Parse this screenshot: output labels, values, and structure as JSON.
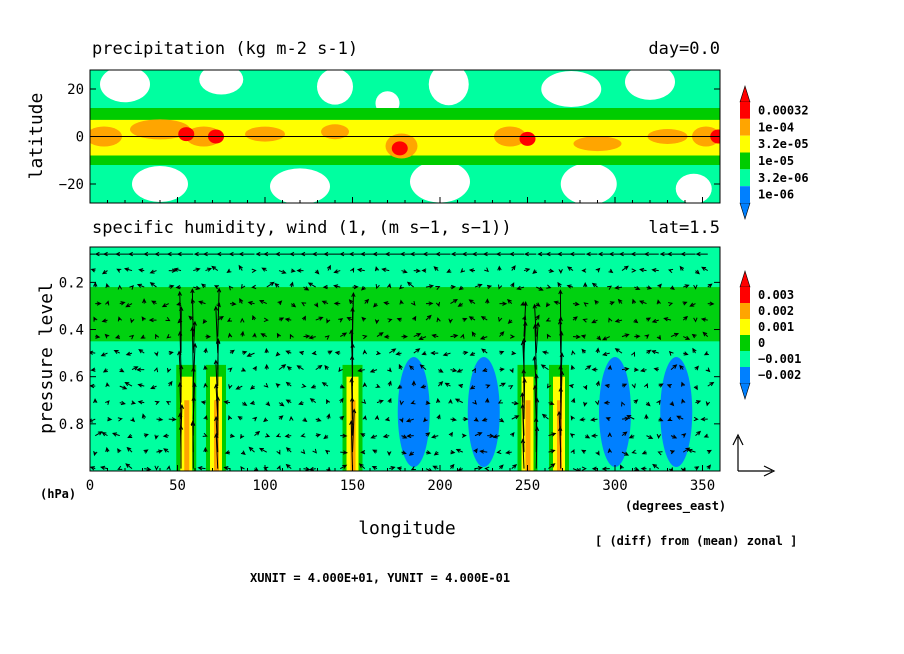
{
  "chart_data": [
    {
      "type": "heatmap",
      "title": "precipitation (kg m-2 s-1)",
      "title_right": "day=0.0",
      "ylabel": "latitude",
      "xlim": [
        0,
        360
      ],
      "ylim": [
        -28,
        28
      ],
      "yticks": [
        "20",
        "0",
        "−20"
      ],
      "ytick_values": [
        20,
        0,
        -20
      ],
      "legend": {
        "placement": "right",
        "levels": [
          "0.00032",
          "1e-04",
          "3.2e-05",
          "1e-05",
          "3.2e-06",
          "1e-06"
        ],
        "colors": [
          "#ff0000",
          "#ffa500",
          "#ffff00",
          "#00cc00",
          "#00ffa0",
          "#0080ff"
        ]
      },
      "features": {
        "equator_line_lat": 0,
        "maxima": [
          {
            "lon": 55,
            "lat": 1
          },
          {
            "lon": 72,
            "lat": 0
          },
          {
            "lon": 177,
            "lat": -5
          },
          {
            "lon": 250,
            "lat": -1
          },
          {
            "lon": 359,
            "lat": 0
          }
        ]
      }
    },
    {
      "type": "heatmap",
      "title": "specific humidity, wind (1, (m s−1, s−1))",
      "title_right": "lat=1.5",
      "xlabel": "longitude",
      "ylabel": "pressure level",
      "y_unit_label": "(hPa)",
      "x_unit_label": "(degrees_east)",
      "xlim": [
        0,
        360
      ],
      "ylim": [
        1.0,
        0.05
      ],
      "xticks": [
        "0",
        "50",
        "100",
        "150",
        "200",
        "250",
        "300",
        "350"
      ],
      "xtick_values": [
        0,
        50,
        100,
        150,
        200,
        250,
        300,
        350
      ],
      "yticks": [
        "0.2",
        "0.4",
        "0.6",
        "0.8"
      ],
      "ytick_values": [
        0.2,
        0.4,
        0.6,
        0.8
      ],
      "legend": {
        "placement": "right",
        "levels": [
          "0.003",
          "0.002",
          "0.001",
          "0",
          "−0.001",
          "−0.002"
        ],
        "colors": [
          "#ff0000",
          "#ffa500",
          "#ffff00",
          "#00cc00",
          "#00ffa0",
          "#0080ff"
        ]
      },
      "vectors": "wind arrows (u, omega) overlaid",
      "features": {
        "moist_columns_lon": [
          55,
          72,
          150,
          250,
          268
        ],
        "dry_columns_lon": [
          185,
          225,
          300,
          335
        ]
      }
    }
  ],
  "annotations": {
    "diff_note": "[ (diff) from (mean) zonal ]",
    "unit_note": "XUNIT = 4.000E+01, YUNIT = 4.000E-01"
  }
}
